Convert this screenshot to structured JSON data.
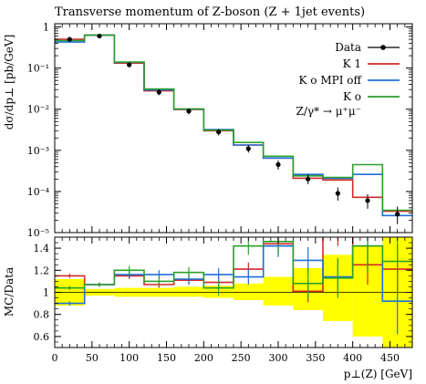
{
  "chart_data": [
    {
      "type": "line",
      "panel": "main",
      "title": "Transverse momentum of Z-boson (Z + 1jet events)",
      "ylabel": "dσ/dp⊥ [pb/GeV]",
      "yscale": "log",
      "ylim": [
        1e-05,
        1.2
      ],
      "xlim": [
        0,
        480
      ],
      "y_ticks": [
        {
          "value": 1,
          "label": "1"
        },
        {
          "value": 0.1,
          "label": "10⁻¹"
        },
        {
          "value": 0.01,
          "label": "10⁻²"
        },
        {
          "value": 0.001,
          "label": "10⁻³"
        },
        {
          "value": 0.0001,
          "label": "10⁻⁴"
        },
        {
          "value": 1e-05,
          "label": "10⁻⁵"
        }
      ],
      "bin_edges": [
        0,
        40,
        80,
        120,
        160,
        200,
        240,
        280,
        320,
        360,
        400,
        440,
        480
      ],
      "annotation": "Z/γ* → μ⁺μ⁻",
      "legend_position": "top-right",
      "series": [
        {
          "name": "Data",
          "color": "#000000",
          "style": "points",
          "x": [
            20,
            60,
            100,
            140,
            180,
            220,
            260,
            300,
            340,
            380,
            420,
            460
          ],
          "values": [
            0.5,
            0.6,
            0.12,
            0.026,
            0.009,
            0.0028,
            0.0011,
            0.00045,
            0.0002,
            9e-05,
            6e-05,
            2.8e-05
          ],
          "err_low": [
            0.45,
            0.54,
            0.105,
            0.022,
            0.0075,
            0.0023,
            0.00088,
            0.00034,
            0.00015,
            6e-05,
            3.8e-05,
            1.6e-05
          ],
          "err_high": [
            0.55,
            0.66,
            0.135,
            0.03,
            0.0105,
            0.0033,
            0.00132,
            0.00057,
            0.00026,
            0.000125,
            8.6e-05,
            4.3e-05
          ]
        },
        {
          "name": "K 1",
          "color": "#d62728",
          "style": "step",
          "values": [
            0.5,
            0.63,
            0.132,
            0.028,
            0.0098,
            0.003,
            0.00135,
            0.00065,
            0.00021,
            0.00019,
            7.2e-05,
            3.3e-05
          ]
        },
        {
          "name": "K o MPI off",
          "color": "#1f6fdb",
          "style": "step",
          "values": [
            0.43,
            0.63,
            0.138,
            0.0295,
            0.01,
            0.0032,
            0.00135,
            0.00065,
            0.00026,
            0.00021,
            0.00026,
            2.6e-05
          ]
        },
        {
          "name": "K o",
          "color": "#2ca02c",
          "style": "step",
          "values": [
            0.47,
            0.63,
            0.14,
            0.031,
            0.0102,
            0.0031,
            0.00155,
            0.00072,
            0.00024,
            0.00022,
            0.00045,
            3.5e-05
          ]
        }
      ]
    },
    {
      "type": "line",
      "panel": "ratio",
      "ylabel": "MC/Data",
      "xlabel": "p⊥(Z) [GeV]",
      "ylim": [
        0.5,
        1.5
      ],
      "xlim": [
        0,
        480
      ],
      "y_ticks": [
        {
          "value": 0.6,
          "label": "0.6"
        },
        {
          "value": 0.8,
          "label": "0.8"
        },
        {
          "value": 1.0,
          "label": "1"
        },
        {
          "value": 1.2,
          "label": "1.2"
        },
        {
          "value": 1.4,
          "label": "1.4"
        }
      ],
      "x_ticks": [
        {
          "value": 0,
          "label": "0"
        },
        {
          "value": 50,
          "label": "50"
        },
        {
          "value": 100,
          "label": "100"
        },
        {
          "value": 150,
          "label": "150"
        },
        {
          "value": 200,
          "label": "200"
        },
        {
          "value": 250,
          "label": "250"
        },
        {
          "value": 300,
          "label": "300"
        },
        {
          "value": 350,
          "label": "350"
        },
        {
          "value": 400,
          "label": "400"
        },
        {
          "value": 450,
          "label": "450"
        }
      ],
      "bin_edges": [
        0,
        40,
        80,
        120,
        160,
        200,
        240,
        280,
        320,
        360,
        400,
        440,
        480
      ],
      "data_band": {
        "color": "#ffff00",
        "low": [
          0.88,
          0.97,
          0.96,
          0.96,
          0.96,
          0.95,
          0.93,
          0.88,
          0.84,
          0.74,
          0.6,
          0.5
        ],
        "high": [
          1.12,
          1.03,
          1.04,
          1.04,
          1.05,
          1.06,
          1.08,
          1.14,
          1.22,
          1.34,
          1.42,
          1.55
        ]
      },
      "series": [
        {
          "name": "K 1",
          "color": "#d62728",
          "values": [
            1.15,
            1.07,
            1.15,
            1.07,
            1.11,
            1.09,
            1.21,
            1.44,
            1.01,
            1.56,
            1.25,
            1.21
          ],
          "err": [
            0.02,
            0.02,
            0.03,
            0.03,
            0.04,
            0.05,
            0.06,
            0.09,
            0.1,
            0.14,
            0.18,
            0.22
          ]
        },
        {
          "name": "K o MPI off",
          "color": "#1f6fdb",
          "values": [
            0.9,
            1.07,
            1.16,
            1.16,
            1.12,
            1.16,
            1.14,
            1.42,
            1.29,
            1.14,
            1.42,
            0.92
          ],
          "err": [
            0.02,
            0.02,
            0.03,
            0.04,
            0.05,
            0.06,
            0.07,
            0.1,
            0.12,
            0.16,
            0.22,
            0.3
          ]
        },
        {
          "name": "K o",
          "color": "#2ca02c",
          "values": [
            1.04,
            1.07,
            1.2,
            1.1,
            1.18,
            1.04,
            1.42,
            1.46,
            1.08,
            1.13,
            1.42,
            1.28
          ],
          "err": [
            0.02,
            0.02,
            0.04,
            0.04,
            0.05,
            0.07,
            0.08,
            0.12,
            0.14,
            0.18,
            0.24,
            0.32
          ]
        }
      ]
    }
  ]
}
